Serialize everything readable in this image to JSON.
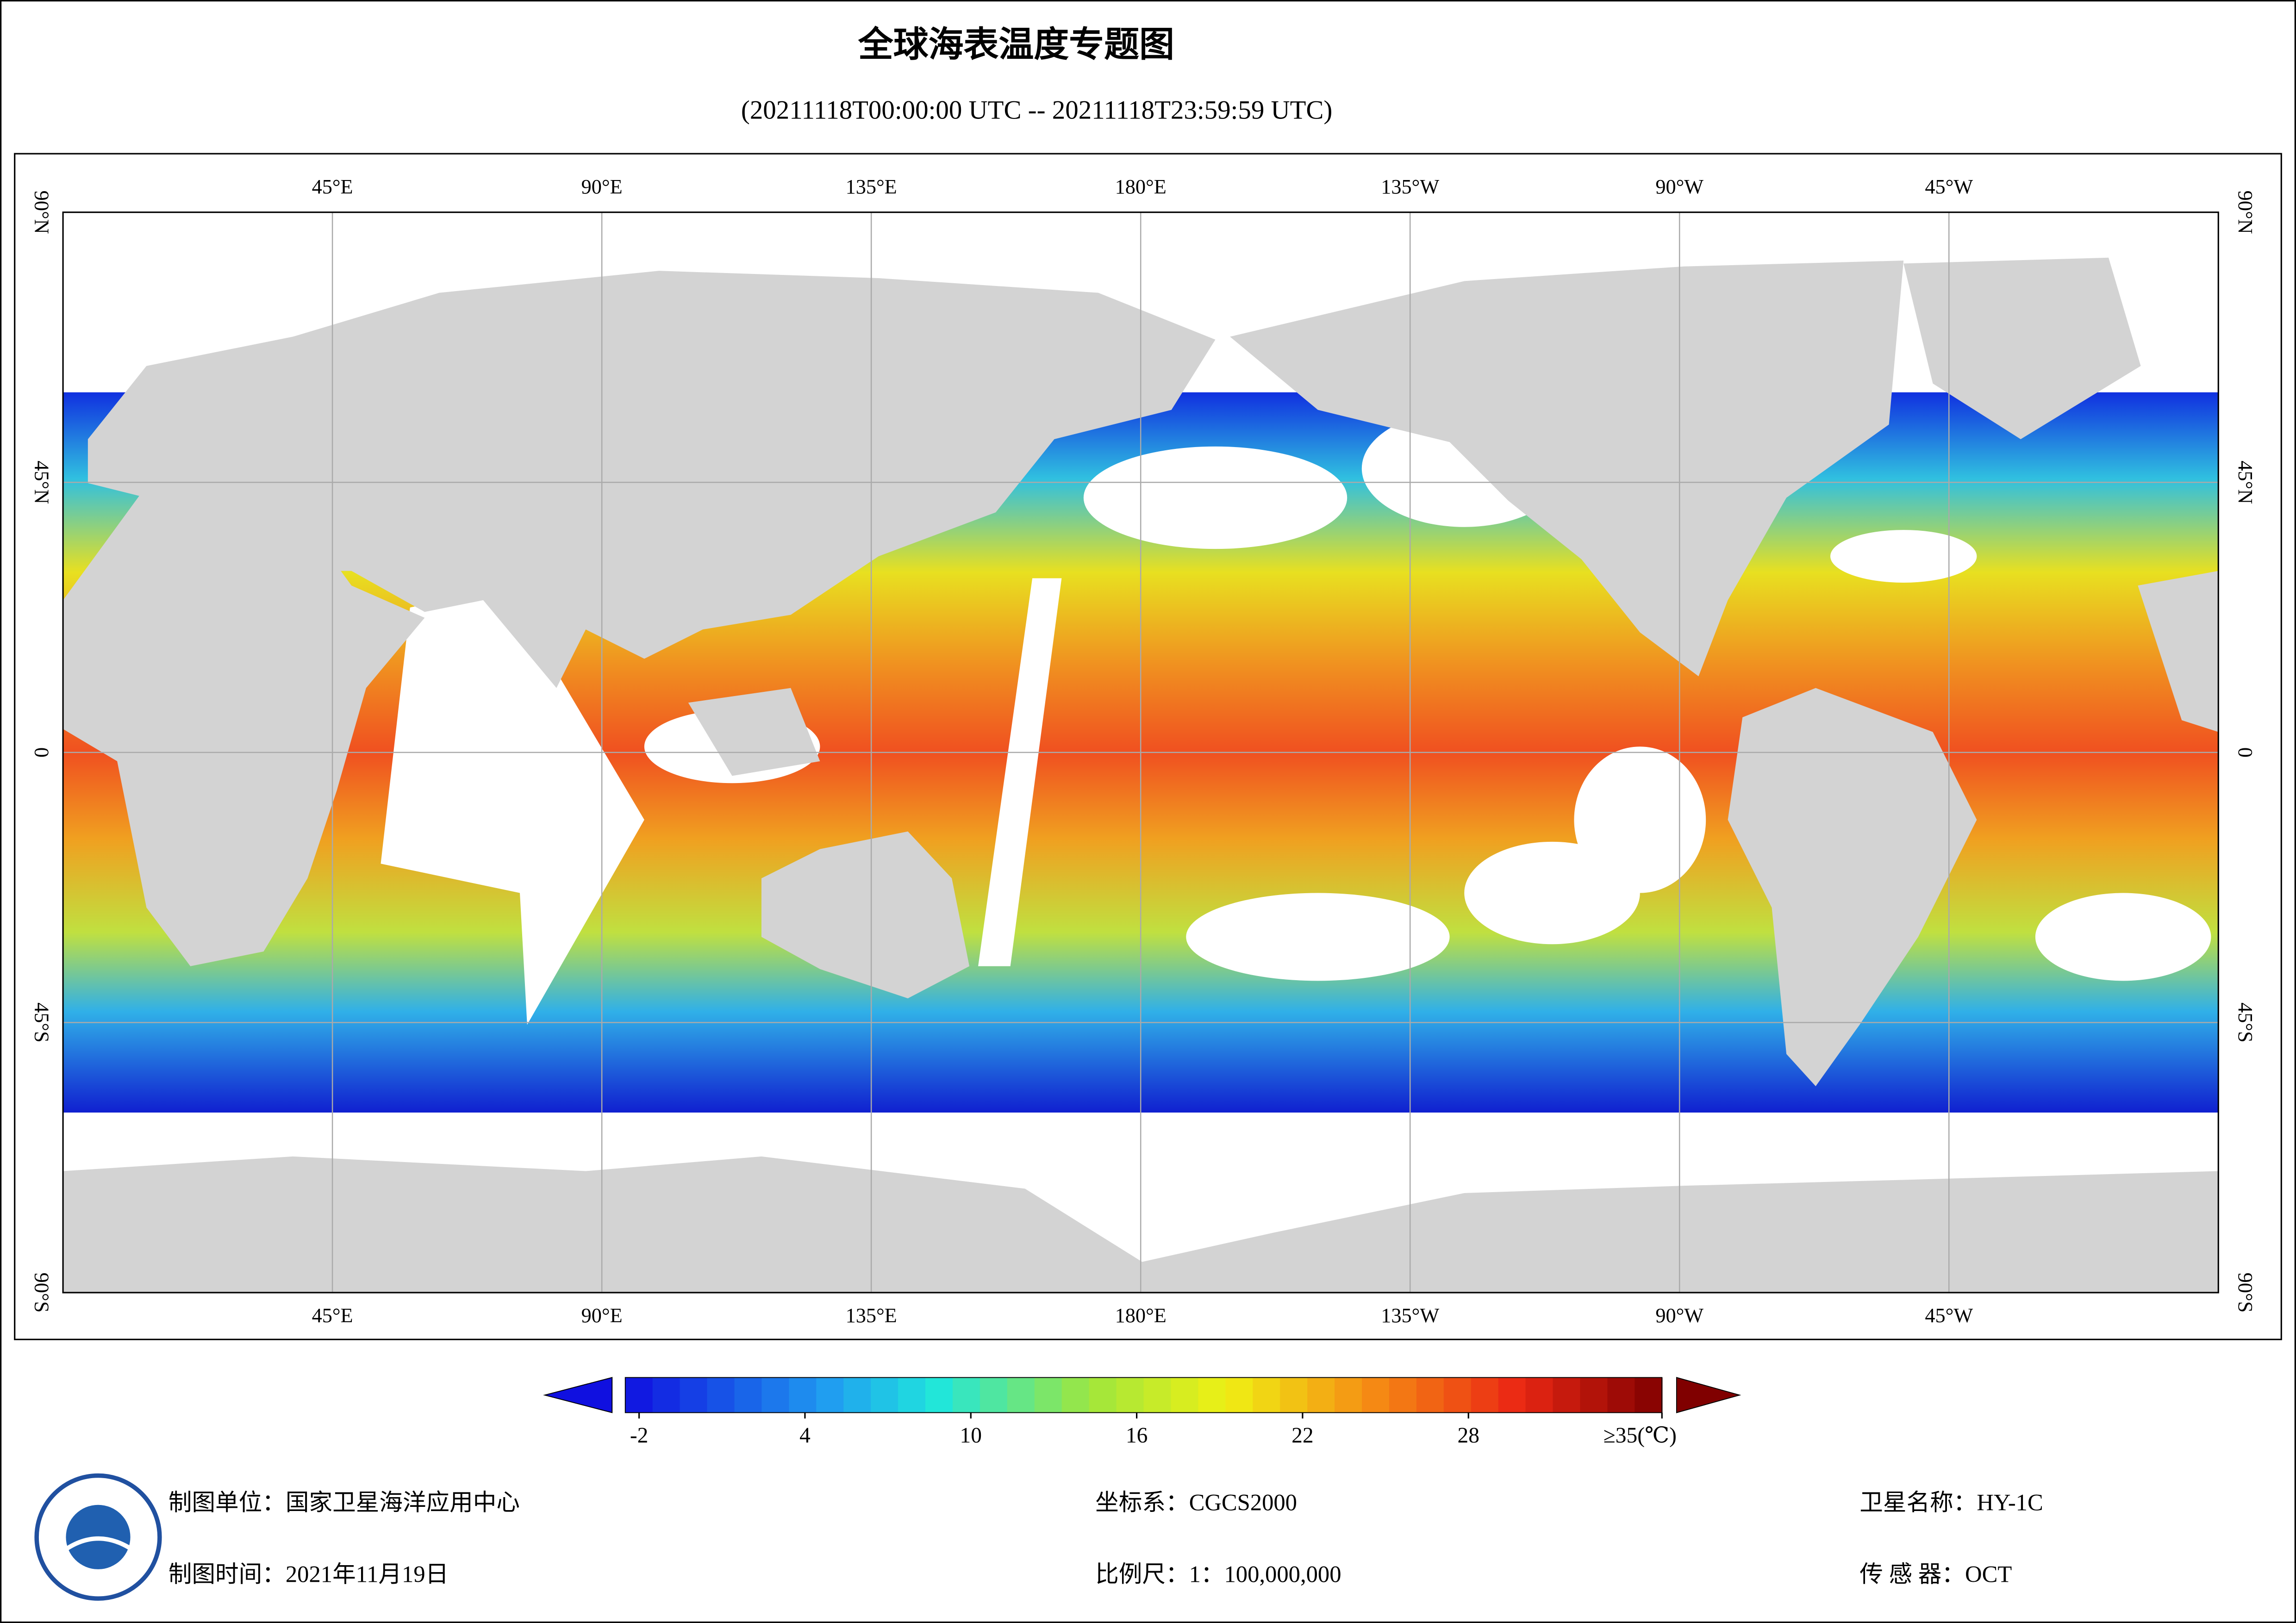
{
  "title": "全球海表温度专题图",
  "subtitle": "(20211118T00:00:00 UTC -- 20211118T23:59:59 UTC)",
  "map": {
    "lonlim": [
      0,
      360
    ],
    "latlim": [
      -90,
      90
    ],
    "lon_ticks": [
      {
        "value": 45,
        "label": "45°E"
      },
      {
        "value": 90,
        "label": "90°E"
      },
      {
        "value": 135,
        "label": "135°E"
      },
      {
        "value": 180,
        "label": "180°E"
      },
      {
        "value": 225,
        "label": "135°W"
      },
      {
        "value": 270,
        "label": "90°W"
      },
      {
        "value": 315,
        "label": "45°W"
      }
    ],
    "lat_ticks": [
      {
        "value": 90,
        "label": "90°N"
      },
      {
        "value": 45,
        "label": "45°N"
      },
      0,
      {
        "value": -45,
        "label": "45°S"
      },
      {
        "value": -90,
        "label": "90°S"
      }
    ]
  },
  "colorbar": {
    "range": [
      -2.5,
      35
    ],
    "ticks": [
      -2,
      4,
      10,
      16,
      22,
      28,
      {
        "value": 35,
        "label": "≥35(℃)"
      }
    ]
  },
  "footer": {
    "unit": "制图单位：国家卫星海洋应用中心",
    "time": "制图时间：2021年11月19日",
    "crs": "坐标系：CGCS2000",
    "scale": "比例尺：1：100,000,000",
    "satellite": "卫星名称：HY-1C",
    "sensor": "传 感 器：OCT"
  }
}
